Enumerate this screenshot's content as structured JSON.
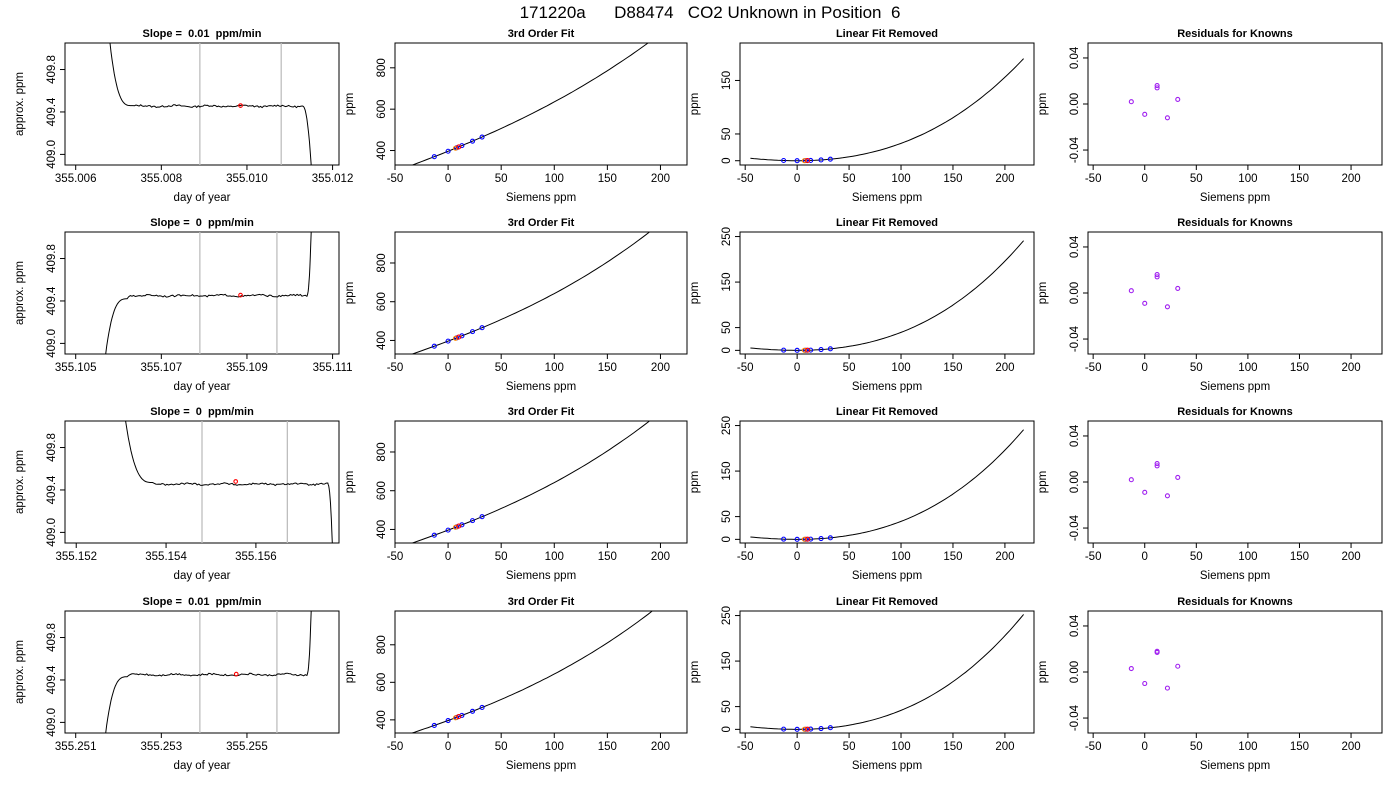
{
  "page_title": "171220a      D88474   CO2 Unknown in Position  6",
  "colors": {
    "line": "#000000",
    "frame": "#000000",
    "vline": "#bebebe",
    "marker_red": "#ff0000",
    "marker_blue": "#0000ff",
    "marker_purple": "#a020f0"
  },
  "chart_data": [
    {
      "type": "line",
      "row": 0,
      "col": 0,
      "title": "Slope =  0.01  ppm/min",
      "xlabel": "day of year",
      "ylabel": "approx. ppm",
      "xlim": [
        355.00575,
        355.01215
      ],
      "ylim": [
        408.9,
        410.05
      ],
      "xticks": [
        355.006,
        355.008,
        355.01,
        355.012
      ],
      "xtick_labels": [
        "355.006",
        "355.008",
        "355.010",
        "355.012"
      ],
      "yticks": [
        409.0,
        409.4,
        409.8
      ],
      "ytick_labels": [
        "409.0",
        "409.4",
        "409.8"
      ],
      "vlines": [
        355.0089,
        355.0108
      ],
      "red_point": {
        "x": 355.00985,
        "y": 409.46
      },
      "trace": {
        "start": [
          355.0068,
          410.05
        ],
        "knee": [
          355.0073,
          409.46
        ],
        "plateau_x": [
          355.0073,
          355.0113
        ],
        "plateau_y": 409.455,
        "end": [
          355.0115,
          408.9
        ],
        "direction": "down-up-down"
      }
    },
    {
      "type": "line",
      "row": 0,
      "col": 1,
      "title": "3rd Order Fit",
      "xlabel": "Siemens ppm",
      "ylabel": "ppm",
      "xlim": [
        -50,
        225
      ],
      "ylim": [
        330,
        920
      ],
      "xticks": [
        -50,
        0,
        50,
        100,
        150,
        200
      ],
      "xtick_labels": [
        "-50",
        "0",
        "50",
        "100",
        "150",
        "200"
      ],
      "yticks": [
        400,
        600,
        800
      ],
      "ytick_labels": [
        "400",
        "600",
        "800"
      ],
      "curve": {
        "x0": -45,
        "x1": 218,
        "c0": 396.5,
        "c1": 2.06,
        "c2": 0.0026,
        "c3": 6.5e-06
      },
      "points_blue": [
        -13,
        0,
        8,
        13,
        23,
        32
      ],
      "points_red": [
        10
      ],
      "points_orange": [
        7
      ]
    },
    {
      "type": "line",
      "row": 0,
      "col": 2,
      "title": "Linear Fit Removed",
      "xlabel": "Siemens ppm",
      "ylabel": "ppm",
      "xlim": [
        -55,
        228
      ],
      "ylim": [
        -8,
        220
      ],
      "xticks": [
        -50,
        0,
        50,
        100,
        150,
        200
      ],
      "xtick_labels": [
        "-50",
        "0",
        "50",
        "100",
        "150",
        "200"
      ],
      "yticks": [
        0,
        50,
        150
      ],
      "ytick_labels": [
        "0",
        "50",
        "150"
      ],
      "curve": {
        "x0": -45,
        "x1": 218,
        "c0": 0,
        "c1": 0,
        "c2": 0.0026,
        "c3": 6.5e-06
      },
      "points_blue": [
        -13,
        0,
        8,
        13,
        23,
        32
      ],
      "points_red": [
        10
      ],
      "points_orange": [
        7
      ]
    },
    {
      "type": "scatter",
      "row": 0,
      "col": 3,
      "title": "Residuals for Knowns",
      "xlabel": "Siemens ppm",
      "ylabel": "ppm",
      "xlim": [
        -55,
        230
      ],
      "ylim": [
        -0.053,
        0.053
      ],
      "xticks": [
        -50,
        0,
        50,
        100,
        150,
        200
      ],
      "xtick_labels": [
        "-50",
        "0",
        "50",
        "100",
        "150",
        "200"
      ],
      "yticks": [
        -0.04,
        0.0,
        0.04
      ],
      "ytick_labels": [
        "-0.04",
        "0.00",
        "0.04"
      ],
      "x": [
        -13,
        0,
        12,
        12,
        22,
        32
      ],
      "y": [
        0.002,
        -0.009,
        0.016,
        0.014,
        -0.012,
        0.004
      ]
    },
    {
      "type": "line",
      "row": 1,
      "col": 0,
      "title": "Slope =  0  ppm/min",
      "xlabel": "day of year",
      "ylabel": "approx. ppm",
      "xlim": [
        355.10475,
        355.11115
      ],
      "ylim": [
        408.9,
        410.05
      ],
      "xticks": [
        355.105,
        355.107,
        355.109,
        355.111
      ],
      "xtick_labels": [
        "355.105",
        "355.107",
        "355.109",
        "355.111"
      ],
      "yticks": [
        409.0,
        409.4,
        409.8
      ],
      "ytick_labels": [
        "409.0",
        "409.4",
        "409.8"
      ],
      "vlines": [
        355.1079,
        355.1097
      ],
      "red_point": {
        "x": 355.10885,
        "y": 409.455
      },
      "trace": {
        "start": [
          355.1057,
          408.9
        ],
        "knee": [
          355.1062,
          409.42
        ],
        "plateau_x": [
          355.1062,
          355.1104
        ],
        "plateau_y": 409.45,
        "end": [
          355.1105,
          410.05
        ],
        "direction": "up-flat-up"
      }
    },
    {
      "type": "line",
      "row": 1,
      "col": 1,
      "title": "3rd Order Fit",
      "xlabel": "Siemens ppm",
      "ylabel": "ppm",
      "xlim": [
        -50,
        225
      ],
      "ylim": [
        330,
        960
      ],
      "xticks": [
        -50,
        0,
        50,
        100,
        150,
        200
      ],
      "xtick_labels": [
        "-50",
        "0",
        "50",
        "100",
        "150",
        "200"
      ],
      "yticks": [
        400,
        600,
        800
      ],
      "ytick_labels": [
        "400",
        "600",
        "800"
      ],
      "curve": {
        "x0": -45,
        "x1": 218,
        "c0": 396.5,
        "c1": 2.06,
        "c2": 0.003,
        "c3": 9.5e-06
      },
      "points_blue": [
        -13,
        0,
        8,
        13,
        23,
        32
      ],
      "points_red": [
        10
      ],
      "points_orange": [
        7
      ]
    },
    {
      "type": "line",
      "row": 1,
      "col": 2,
      "title": "Linear Fit Removed",
      "xlabel": "Siemens ppm",
      "ylabel": "ppm",
      "xlim": [
        -55,
        228
      ],
      "ylim": [
        -8,
        260
      ],
      "xticks": [
        -50,
        0,
        50,
        100,
        150,
        200
      ],
      "xtick_labels": [
        "-50",
        "0",
        "50",
        "100",
        "150",
        "200"
      ],
      "yticks": [
        0,
        50,
        150,
        250
      ],
      "ytick_labels": [
        "0",
        "50",
        "150",
        "250"
      ],
      "curve": {
        "x0": -45,
        "x1": 218,
        "c0": 0,
        "c1": 0,
        "c2": 0.003,
        "c3": 9.5e-06
      },
      "points_blue": [
        -13,
        0,
        8,
        13,
        23,
        32
      ],
      "points_red": [
        10
      ],
      "points_orange": [
        7
      ]
    },
    {
      "type": "scatter",
      "row": 1,
      "col": 3,
      "title": "Residuals for Knowns",
      "xlabel": "Siemens ppm",
      "ylabel": "ppm",
      "xlim": [
        -55,
        230
      ],
      "ylim": [
        -0.053,
        0.053
      ],
      "xticks": [
        -50,
        0,
        50,
        100,
        150,
        200
      ],
      "xtick_labels": [
        "-50",
        "0",
        "50",
        "100",
        "150",
        "200"
      ],
      "yticks": [
        -0.04,
        0.0,
        0.04
      ],
      "ytick_labels": [
        "-0.04",
        "0.00",
        "0.04"
      ],
      "x": [
        -13,
        0,
        12,
        12,
        22,
        32
      ],
      "y": [
        0.002,
        -0.009,
        0.016,
        0.014,
        -0.012,
        0.004
      ]
    },
    {
      "type": "line",
      "row": 2,
      "col": 0,
      "title": "Slope =  0  ppm/min",
      "xlabel": "day of year",
      "ylabel": "approx. ppm",
      "xlim": [
        355.15175,
        355.15785
      ],
      "ylim": [
        408.9,
        410.05
      ],
      "xticks": [
        355.152,
        355.154,
        355.156
      ],
      "xtick_labels": [
        "355.152",
        "355.154",
        "355.156"
      ],
      "yticks": [
        409.0,
        409.4,
        409.8
      ],
      "ytick_labels": [
        "409.0",
        "409.4",
        "409.8"
      ],
      "vlines": [
        355.1548,
        355.1567
      ],
      "red_point": {
        "x": 355.15555,
        "y": 409.48
      },
      "trace": {
        "start": [
          355.1531,
          410.05
        ],
        "knee": [
          355.1537,
          409.47
        ],
        "plateau_x": [
          355.1537,
          355.1576
        ],
        "plateau_y": 409.455,
        "end": [
          355.1577,
          408.9
        ],
        "direction": "down-up-down"
      }
    },
    {
      "type": "line",
      "row": 2,
      "col": 1,
      "title": "3rd Order Fit",
      "xlabel": "Siemens ppm",
      "ylabel": "ppm",
      "xlim": [
        -50,
        225
      ],
      "ylim": [
        330,
        960
      ],
      "xticks": [
        -50,
        0,
        50,
        100,
        150,
        200
      ],
      "xtick_labels": [
        "-50",
        "0",
        "50",
        "100",
        "150",
        "200"
      ],
      "yticks": [
        400,
        600,
        800
      ],
      "ytick_labels": [
        "400",
        "600",
        "800"
      ],
      "curve": {
        "x0": -45,
        "x1": 218,
        "c0": 396.5,
        "c1": 2.06,
        "c2": 0.003,
        "c3": 9.5e-06
      },
      "points_blue": [
        -13,
        0,
        8,
        13,
        23,
        32
      ],
      "points_red": [
        10
      ],
      "points_orange": [
        7
      ]
    },
    {
      "type": "line",
      "row": 2,
      "col": 2,
      "title": "Linear Fit Removed",
      "xlabel": "Siemens ppm",
      "ylabel": "ppm",
      "xlim": [
        -55,
        228
      ],
      "ylim": [
        -8,
        260
      ],
      "xticks": [
        -50,
        0,
        50,
        100,
        150,
        200
      ],
      "xtick_labels": [
        "-50",
        "0",
        "50",
        "100",
        "150",
        "200"
      ],
      "yticks": [
        0,
        50,
        150,
        250
      ],
      "ytick_labels": [
        "0",
        "50",
        "150",
        "250"
      ],
      "curve": {
        "x0": -45,
        "x1": 218,
        "c0": 0,
        "c1": 0,
        "c2": 0.003,
        "c3": 9.5e-06
      },
      "points_blue": [
        -13,
        0,
        8,
        13,
        23,
        32
      ],
      "points_red": [
        10
      ],
      "points_orange": [
        7
      ]
    },
    {
      "type": "scatter",
      "row": 2,
      "col": 3,
      "title": "Residuals for Knowns",
      "xlabel": "Siemens ppm",
      "ylabel": "ppm",
      "xlim": [
        -55,
        230
      ],
      "ylim": [
        -0.053,
        0.053
      ],
      "xticks": [
        -50,
        0,
        50,
        100,
        150,
        200
      ],
      "xtick_labels": [
        "-50",
        "0",
        "50",
        "100",
        "150",
        "200"
      ],
      "yticks": [
        -0.04,
        0.0,
        0.04
      ],
      "ytick_labels": [
        "-0.04",
        "0.00",
        "0.04"
      ],
      "x": [
        -13,
        0,
        12,
        12,
        22,
        32
      ],
      "y": [
        0.002,
        -0.009,
        0.016,
        0.014,
        -0.012,
        0.004
      ]
    },
    {
      "type": "line",
      "row": 3,
      "col": 0,
      "title": "Slope =  0.01  ppm/min",
      "xlabel": "day of year",
      "ylabel": "approx. ppm",
      "xlim": [
        355.25075,
        355.25715
      ],
      "ylim": [
        408.9,
        410.05
      ],
      "xticks": [
        355.251,
        355.253,
        355.255
      ],
      "xtick_labels": [
        "355.251",
        "355.253",
        "355.255"
      ],
      "yticks": [
        409.0,
        409.4,
        409.8
      ],
      "ytick_labels": [
        "409.0",
        "409.4",
        "409.8"
      ],
      "vlines": [
        355.2539,
        355.2557
      ],
      "red_point": {
        "x": 355.25475,
        "y": 409.455
      },
      "trace": {
        "start": [
          355.2517,
          408.9
        ],
        "knee": [
          355.2522,
          409.43
        ],
        "plateau_x": [
          355.2522,
          355.2564
        ],
        "plateau_y": 409.45,
        "end": [
          355.2565,
          410.05
        ],
        "direction": "up-flat-up"
      }
    },
    {
      "type": "line",
      "row": 3,
      "col": 1,
      "title": "3rd Order Fit",
      "xlabel": "Siemens ppm",
      "ylabel": "ppm",
      "xlim": [
        -50,
        225
      ],
      "ylim": [
        330,
        980
      ],
      "xticks": [
        -50,
        0,
        50,
        100,
        150,
        200
      ],
      "xtick_labels": [
        "-50",
        "0",
        "50",
        "100",
        "150",
        "200"
      ],
      "yticks": [
        400,
        600,
        800
      ],
      "ytick_labels": [
        "400",
        "600",
        "800"
      ],
      "curve": {
        "x0": -45,
        "x1": 218,
        "c0": 396.5,
        "c1": 2.06,
        "c2": 0.0032,
        "c3": 9.7e-06
      },
      "points_blue": [
        -13,
        0,
        8,
        13,
        23,
        32
      ],
      "points_red": [
        10
      ],
      "points_orange": [
        7
      ]
    },
    {
      "type": "line",
      "row": 3,
      "col": 2,
      "title": "Linear Fit Removed",
      "xlabel": "Siemens ppm",
      "ylabel": "ppm",
      "xlim": [
        -55,
        228
      ],
      "ylim": [
        -8,
        260
      ],
      "xticks": [
        -50,
        0,
        50,
        100,
        150,
        200
      ],
      "xtick_labels": [
        "-50",
        "0",
        "50",
        "100",
        "150",
        "200"
      ],
      "yticks": [
        0,
        50,
        150,
        250
      ],
      "ytick_labels": [
        "0",
        "50",
        "150",
        "250"
      ],
      "curve": {
        "x0": -45,
        "x1": 218,
        "c0": 0,
        "c1": 0,
        "c2": 0.0032,
        "c3": 9.7e-06
      },
      "points_blue": [
        -13,
        0,
        8,
        13,
        23,
        32
      ],
      "points_red": [
        10
      ],
      "points_orange": [
        7
      ]
    },
    {
      "type": "scatter",
      "row": 3,
      "col": 3,
      "title": "Residuals for Knowns",
      "xlabel": "Siemens ppm",
      "ylabel": "ppm",
      "xlim": [
        -55,
        230
      ],
      "ylim": [
        -0.053,
        0.053
      ],
      "xticks": [
        -50,
        0,
        50,
        100,
        150,
        200
      ],
      "xtick_labels": [
        "-50",
        "0",
        "50",
        "100",
        "150",
        "200"
      ],
      "yticks": [
        -0.04,
        0.0,
        0.04
      ],
      "ytick_labels": [
        "-0.04",
        "0.00",
        "0.04"
      ],
      "x": [
        -13,
        0,
        12,
        12,
        22,
        32
      ],
      "y": [
        0.003,
        -0.01,
        0.018,
        0.017,
        -0.014,
        0.005
      ]
    }
  ]
}
